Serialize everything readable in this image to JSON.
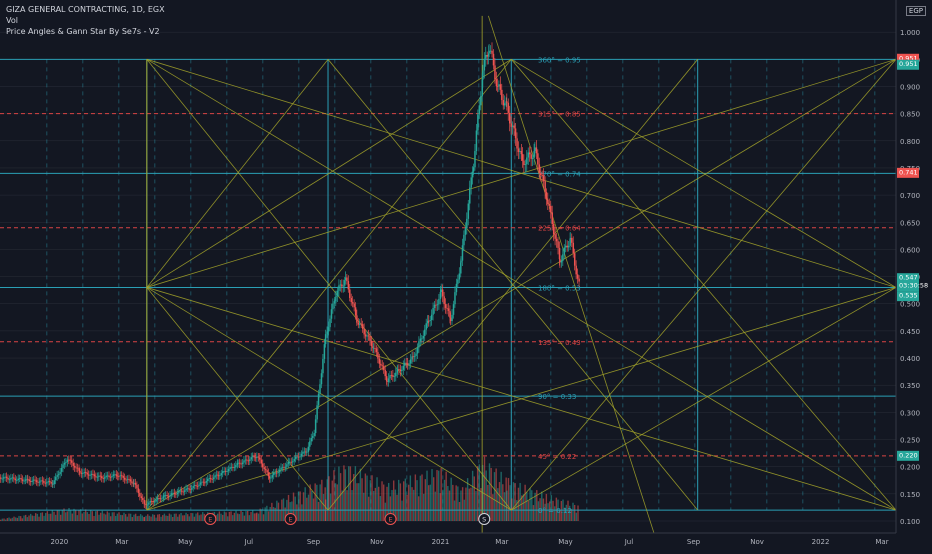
{
  "header": {
    "symbol_line": "GIZA GENERAL CONTRACTING, 1D, EGX",
    "vol_label": "Vol",
    "indicator_label": "Price Angles & Gann Star By Se7s - V2",
    "currency": "EGP"
  },
  "colors": {
    "background": "#131722",
    "up": "#26a69a",
    "down": "#ef5350",
    "gann": "#a5a52a",
    "cyan_level": "#2a9fb5",
    "red_level": "#d94444",
    "grid": "#2a2e39",
    "axis_text": "#b2b5be"
  },
  "chart_data": {
    "type": "candlestick",
    "title": "GIZA GENERAL CONTRACTING, 1D, EGX",
    "ylim": [
      0.1,
      1.05
    ],
    "y_ticks": [
      "1.000",
      "0.950",
      "0.900",
      "0.850",
      "0.800",
      "0.750",
      "0.700",
      "0.650",
      "0.600",
      "0.550",
      "0.500",
      "0.450",
      "0.400",
      "0.350",
      "0.300",
      "0.250",
      "0.200",
      "0.150",
      "0.100"
    ],
    "x_ticks": [
      "2020",
      "Mar",
      "May",
      "Jul",
      "Sep",
      "Nov",
      "2021",
      "Mar",
      "May",
      "Jul",
      "Sep",
      "Nov",
      "2022",
      "Mar"
    ],
    "price_path": [
      [
        "2019-11-05",
        0.18
      ],
      [
        "2019-12-01",
        0.175
      ],
      [
        "2019-12-25",
        0.17
      ],
      [
        "2020-01-08",
        0.215
      ],
      [
        "2020-01-20",
        0.19
      ],
      [
        "2020-02-10",
        0.18
      ],
      [
        "2020-02-25",
        0.185
      ],
      [
        "2020-03-12",
        0.17
      ],
      [
        "2020-03-22",
        0.13
      ],
      [
        "2020-04-10",
        0.145
      ],
      [
        "2020-05-05",
        0.16
      ],
      [
        "2020-06-01",
        0.185
      ],
      [
        "2020-06-20",
        0.205
      ],
      [
        "2020-07-08",
        0.22
      ],
      [
        "2020-07-20",
        0.18
      ],
      [
        "2020-08-10",
        0.21
      ],
      [
        "2020-08-25",
        0.23
      ],
      [
        "2020-09-01",
        0.265
      ],
      [
        "2020-09-12",
        0.44
      ],
      [
        "2020-09-22",
        0.52
      ],
      [
        "2020-10-01",
        0.545
      ],
      [
        "2020-10-12",
        0.47
      ],
      [
        "2020-10-28",
        0.42
      ],
      [
        "2020-11-10",
        0.36
      ],
      [
        "2020-11-20",
        0.375
      ],
      [
        "2020-12-05",
        0.4
      ],
      [
        "2020-12-20",
        0.47
      ],
      [
        "2021-01-01",
        0.52
      ],
      [
        "2021-01-10",
        0.47
      ],
      [
        "2021-01-20",
        0.58
      ],
      [
        "2021-02-01",
        0.76
      ],
      [
        "2021-02-10",
        0.93
      ],
      [
        "2021-02-16",
        0.975
      ],
      [
        "2021-02-24",
        0.9
      ],
      [
        "2021-03-05",
        0.86
      ],
      [
        "2021-03-20",
        0.76
      ],
      [
        "2021-04-01",
        0.78
      ],
      [
        "2021-04-12",
        0.7
      ],
      [
        "2021-04-25",
        0.58
      ],
      [
        "2021-05-05",
        0.62
      ],
      [
        "2021-05-12",
        0.545
      ],
      [
        "2021-05-14",
        0.53
      ]
    ],
    "volume_path": [
      [
        "2019-11-05",
        0.02
      ],
      [
        "2020-01-08",
        0.12
      ],
      [
        "2020-03-22",
        0.06
      ],
      [
        "2020-07-08",
        0.1
      ],
      [
        "2020-09-12",
        0.4
      ],
      [
        "2020-10-01",
        0.55
      ],
      [
        "2020-11-10",
        0.35
      ],
      [
        "2021-01-01",
        0.5
      ],
      [
        "2021-01-20",
        0.3
      ],
      [
        "2021-02-10",
        0.6
      ],
      [
        "2021-03-05",
        0.4
      ],
      [
        "2021-04-12",
        0.25
      ],
      [
        "2021-05-14",
        0.15
      ]
    ],
    "gann_levels": [
      {
        "label": "360° = 0.95",
        "value": 0.95,
        "color": "cyan"
      },
      {
        "label": "315° = 0.85",
        "value": 0.85,
        "color": "red"
      },
      {
        "label": "270° = 0.74",
        "value": 0.74,
        "color": "cyan"
      },
      {
        "label": "225° = 0.64",
        "value": 0.64,
        "color": "red"
      },
      {
        "label": "180° = 0.53",
        "value": 0.53,
        "color": "cyan"
      },
      {
        "label": "135° = 0.43",
        "value": 0.43,
        "color": "red"
      },
      {
        "label": "90° = 0.33",
        "value": 0.33,
        "color": "cyan"
      },
      {
        "label": "45° = 0.22",
        "value": 0.22,
        "color": "red"
      },
      {
        "label": "0° = 0.12",
        "value": 0.12,
        "color": "cyan"
      }
    ],
    "price_badges": [
      {
        "lines": [
          "0.951"
        ],
        "value": 0.951,
        "color": "#ef5350"
      },
      {
        "lines": [
          "0.951"
        ],
        "value": 0.94,
        "color": "#26a69a"
      },
      {
        "lines": [
          "0.741"
        ],
        "value": 0.741,
        "color": "#ef5350"
      },
      {
        "lines": [
          "0.547",
          "03:30:58"
        ],
        "value": 0.547,
        "color": "#26a69a"
      },
      {
        "lines": [
          "0.535"
        ],
        "value": 0.514,
        "color": "#26a69a"
      },
      {
        "lines": [
          "0.220"
        ],
        "value": 0.22,
        "color": "#26a69a"
      }
    ],
    "events": [
      {
        "label": "E",
        "date": "2020-05-25"
      },
      {
        "label": "E",
        "date": "2020-08-10"
      },
      {
        "label": "E",
        "date": "2020-11-14"
      },
      {
        "label": "S",
        "date": "2021-02-12"
      }
    ]
  }
}
